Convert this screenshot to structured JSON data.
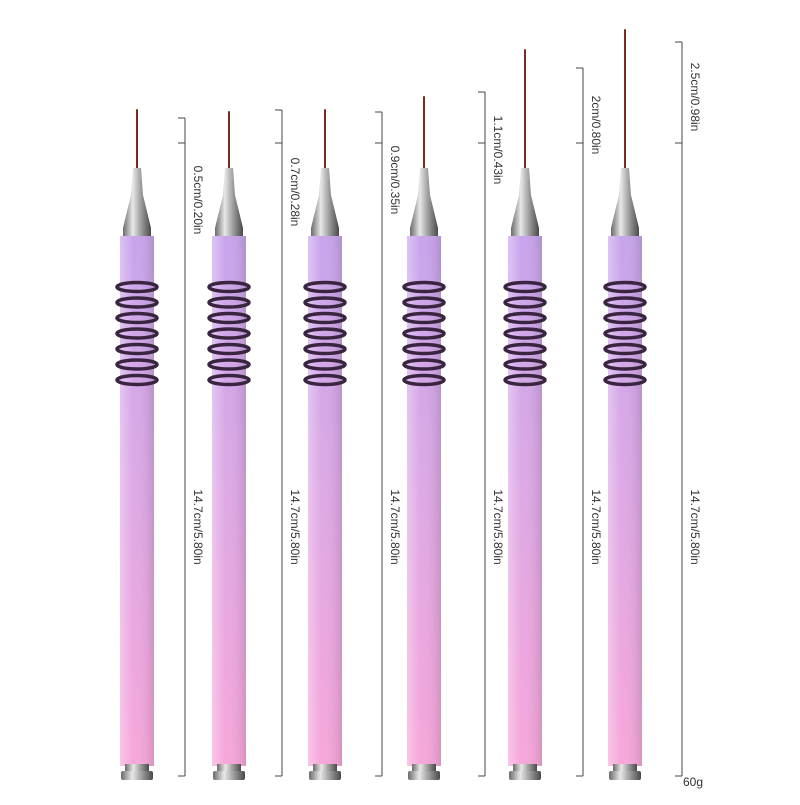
{
  "brushes": [
    {
      "tip_label": "0.5cm/0.20in",
      "handle_label": "14.7cm/5.80in"
    },
    {
      "tip_label": "0.7cm/0.28in",
      "handle_label": "14.7cm/5.80in"
    },
    {
      "tip_label": "0.9cm/0.35in",
      "handle_label": "14.7cm/5.80in"
    },
    {
      "tip_label": "1.1cm/0.43in",
      "handle_label": "14.7cm/5.80in"
    },
    {
      "tip_label": "2cm/0.80in",
      "handle_label": "14.7cm/5.80in"
    },
    {
      "tip_label": "2.5cm/0.98in",
      "handle_label": "14.7cm/5.80in"
    }
  ],
  "weight": "60g"
}
